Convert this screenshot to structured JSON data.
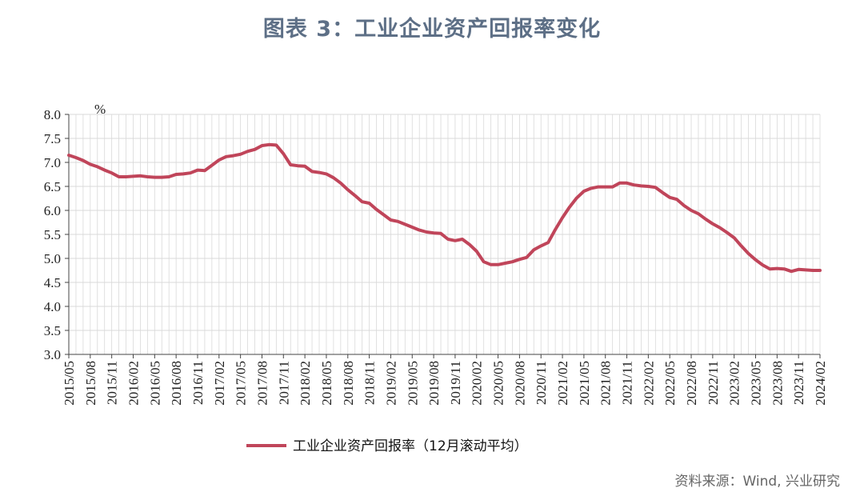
{
  "title": "图表 3：工业企业资产回报率变化",
  "source": "资料来源：Wind, 兴业研究",
  "colors": {
    "series": "#c0455a",
    "grid": "#d9d9d9",
    "axis": "#444444",
    "title": "#5d6f86"
  },
  "chart_data": {
    "type": "line",
    "title": "图表 3：工业企业资产回报率变化",
    "ylabel": "%",
    "ylim": [
      3.0,
      8.0
    ],
    "ytick_step": 0.5,
    "ytick_labels": [
      "3.0",
      "3.5",
      "4.0",
      "4.5",
      "5.0",
      "5.5",
      "6.0",
      "6.5",
      "7.0",
      "7.5",
      "8.0"
    ],
    "grid": true,
    "legend_position": "bottom",
    "x_start": "2015/05",
    "x_end": "2024/02",
    "xtick_labels": [
      "2015/05",
      "2015/08",
      "2015/11",
      "2016/02",
      "2016/05",
      "2016/08",
      "2016/11",
      "2017/02",
      "2017/05",
      "2017/08",
      "2017/11",
      "2018/02",
      "2018/05",
      "2018/08",
      "2018/11",
      "2019/02",
      "2019/05",
      "2019/08",
      "2019/11",
      "2020/02",
      "2020/05",
      "2020/08",
      "2020/11",
      "2021/02",
      "2021/05",
      "2021/08",
      "2021/11",
      "2022/02",
      "2022/05",
      "2022/08",
      "2022/11",
      "2023/02",
      "2023/05",
      "2023/08",
      "2023/11",
      "2024/02"
    ],
    "series": [
      {
        "name": "工业企业资产回报率（12月滚动平均）",
        "values": [
          {
            "x": "2015/05",
            "y": 7.15
          },
          {
            "x": "2015/06",
            "y": 7.1
          },
          {
            "x": "2015/07",
            "y": 7.04
          },
          {
            "x": "2015/08",
            "y": 6.96
          },
          {
            "x": "2015/09",
            "y": 6.91
          },
          {
            "x": "2015/10",
            "y": 6.84
          },
          {
            "x": "2015/11",
            "y": 6.78
          },
          {
            "x": "2015/12",
            "y": 6.7
          },
          {
            "x": "2016/01",
            "y": 6.7
          },
          {
            "x": "2016/02",
            "y": 6.71
          },
          {
            "x": "2016/03",
            "y": 6.72
          },
          {
            "x": "2016/04",
            "y": 6.7
          },
          {
            "x": "2016/05",
            "y": 6.69
          },
          {
            "x": "2016/06",
            "y": 6.69
          },
          {
            "x": "2016/07",
            "y": 6.7
          },
          {
            "x": "2016/08",
            "y": 6.75
          },
          {
            "x": "2016/09",
            "y": 6.76
          },
          {
            "x": "2016/10",
            "y": 6.78
          },
          {
            "x": "2016/11",
            "y": 6.84
          },
          {
            "x": "2016/12",
            "y": 6.83
          },
          {
            "x": "2017/01",
            "y": 6.94
          },
          {
            "x": "2017/02",
            "y": 7.05
          },
          {
            "x": "2017/03",
            "y": 7.12
          },
          {
            "x": "2017/04",
            "y": 7.14
          },
          {
            "x": "2017/05",
            "y": 7.17
          },
          {
            "x": "2017/06",
            "y": 7.23
          },
          {
            "x": "2017/07",
            "y": 7.27
          },
          {
            "x": "2017/08",
            "y": 7.35
          },
          {
            "x": "2017/09",
            "y": 7.37
          },
          {
            "x": "2017/10",
            "y": 7.36
          },
          {
            "x": "2017/11",
            "y": 7.18
          },
          {
            "x": "2017/12",
            "y": 6.95
          },
          {
            "x": "2018/01",
            "y": 6.93
          },
          {
            "x": "2018/02",
            "y": 6.92
          },
          {
            "x": "2018/03",
            "y": 6.81
          },
          {
            "x": "2018/04",
            "y": 6.79
          },
          {
            "x": "2018/05",
            "y": 6.76
          },
          {
            "x": "2018/06",
            "y": 6.68
          },
          {
            "x": "2018/07",
            "y": 6.57
          },
          {
            "x": "2018/08",
            "y": 6.43
          },
          {
            "x": "2018/09",
            "y": 6.31
          },
          {
            "x": "2018/10",
            "y": 6.18
          },
          {
            "x": "2018/11",
            "y": 6.15
          },
          {
            "x": "2018/12",
            "y": 6.02
          },
          {
            "x": "2019/01",
            "y": 5.91
          },
          {
            "x": "2019/02",
            "y": 5.8
          },
          {
            "x": "2019/03",
            "y": 5.77
          },
          {
            "x": "2019/04",
            "y": 5.71
          },
          {
            "x": "2019/05",
            "y": 5.65
          },
          {
            "x": "2019/06",
            "y": 5.59
          },
          {
            "x": "2019/07",
            "y": 5.55
          },
          {
            "x": "2019/08",
            "y": 5.53
          },
          {
            "x": "2019/09",
            "y": 5.52
          },
          {
            "x": "2019/10",
            "y": 5.4
          },
          {
            "x": "2019/11",
            "y": 5.37
          },
          {
            "x": "2019/12",
            "y": 5.4
          },
          {
            "x": "2020/01",
            "y": 5.29
          },
          {
            "x": "2020/02",
            "y": 5.15
          },
          {
            "x": "2020/03",
            "y": 4.93
          },
          {
            "x": "2020/04",
            "y": 4.87
          },
          {
            "x": "2020/05",
            "y": 4.87
          },
          {
            "x": "2020/06",
            "y": 4.9
          },
          {
            "x": "2020/07",
            "y": 4.93
          },
          {
            "x": "2020/08",
            "y": 4.98
          },
          {
            "x": "2020/09",
            "y": 5.02
          },
          {
            "x": "2020/10",
            "y": 5.18
          },
          {
            "x": "2020/11",
            "y": 5.26
          },
          {
            "x": "2020/12",
            "y": 5.33
          },
          {
            "x": "2021/01",
            "y": 5.6
          },
          {
            "x": "2021/02",
            "y": 5.85
          },
          {
            "x": "2021/03",
            "y": 6.07
          },
          {
            "x": "2021/04",
            "y": 6.26
          },
          {
            "x": "2021/05",
            "y": 6.4
          },
          {
            "x": "2021/06",
            "y": 6.46
          },
          {
            "x": "2021/07",
            "y": 6.49
          },
          {
            "x": "2021/08",
            "y": 6.49
          },
          {
            "x": "2021/09",
            "y": 6.49
          },
          {
            "x": "2021/10",
            "y": 6.57
          },
          {
            "x": "2021/11",
            "y": 6.57
          },
          {
            "x": "2021/12",
            "y": 6.53
          },
          {
            "x": "2022/01",
            "y": 6.51
          },
          {
            "x": "2022/02",
            "y": 6.5
          },
          {
            "x": "2022/03",
            "y": 6.48
          },
          {
            "x": "2022/04",
            "y": 6.37
          },
          {
            "x": "2022/05",
            "y": 6.27
          },
          {
            "x": "2022/06",
            "y": 6.23
          },
          {
            "x": "2022/07",
            "y": 6.1
          },
          {
            "x": "2022/08",
            "y": 6.0
          },
          {
            "x": "2022/09",
            "y": 5.93
          },
          {
            "x": "2022/10",
            "y": 5.82
          },
          {
            "x": "2022/11",
            "y": 5.72
          },
          {
            "x": "2022/12",
            "y": 5.64
          },
          {
            "x": "2023/01",
            "y": 5.54
          },
          {
            "x": "2023/02",
            "y": 5.43
          },
          {
            "x": "2023/03",
            "y": 5.26
          },
          {
            "x": "2023/04",
            "y": 5.1
          },
          {
            "x": "2023/05",
            "y": 4.97
          },
          {
            "x": "2023/06",
            "y": 4.86
          },
          {
            "x": "2023/07",
            "y": 4.78
          },
          {
            "x": "2023/08",
            "y": 4.79
          },
          {
            "x": "2023/09",
            "y": 4.78
          },
          {
            "x": "2023/10",
            "y": 4.73
          },
          {
            "x": "2023/11",
            "y": 4.77
          },
          {
            "x": "2023/12",
            "y": 4.76
          },
          {
            "x": "2024/01",
            "y": 4.75
          },
          {
            "x": "2024/02",
            "y": 4.75
          }
        ]
      }
    ]
  }
}
